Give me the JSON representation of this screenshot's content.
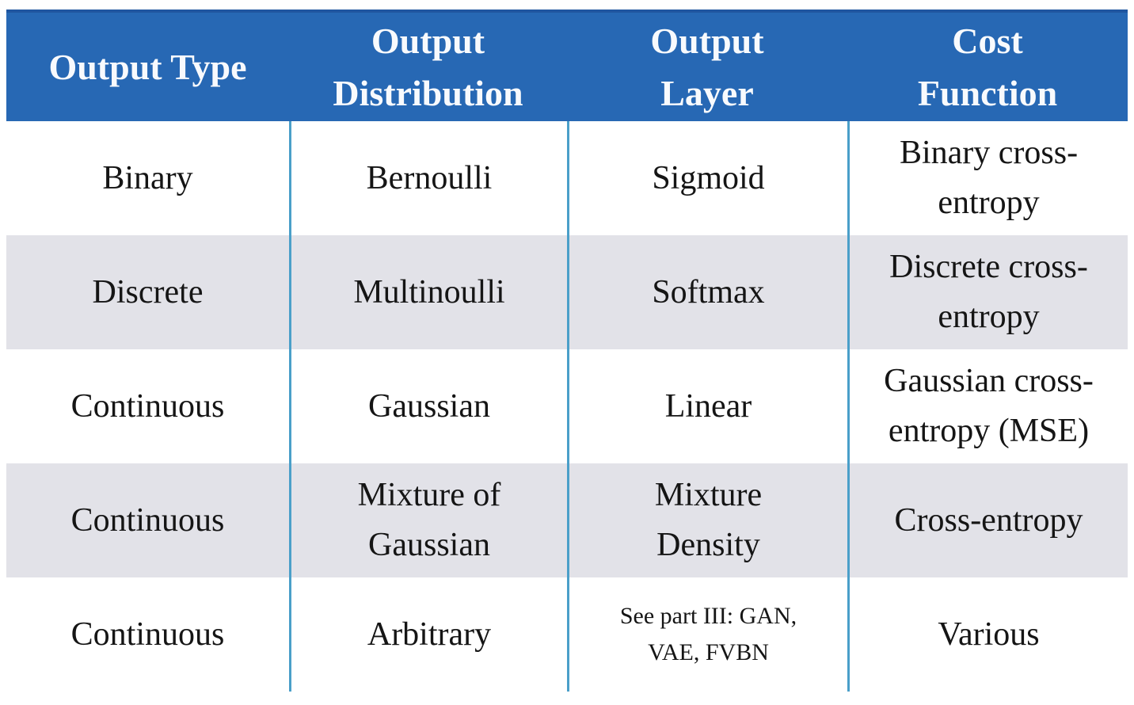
{
  "colors": {
    "page_background": "#ffffff",
    "header_background": "#2768b4",
    "header_top_border": "#2056a0",
    "header_text": "#f8fafd",
    "alt_row_background": "#e2e2e8",
    "column_divider": "#4a9fc9",
    "body_text": "#151515"
  },
  "chart_data": {
    "type": "table",
    "columns": [
      "Output Type",
      "Output Distribution",
      "Output Layer",
      "Cost Function"
    ],
    "rows": [
      [
        "Binary",
        "Bernoulli",
        "Sigmoid",
        "Binary cross-entropy"
      ],
      [
        "Discrete",
        "Multinoulli",
        "Softmax",
        "Discrete cross-entropy"
      ],
      [
        "Continuous",
        "Gaussian",
        "Linear",
        "Gaussian cross-entropy (MSE)"
      ],
      [
        "Continuous",
        "Mixture of Gaussian",
        "Mixture Density",
        "Cross-entropy"
      ],
      [
        "Continuous",
        "Arbitrary",
        "See part III: GAN, VAE, FVBN",
        "Various"
      ]
    ],
    "layout": {
      "header_style": "solid blue band, white bold serif text",
      "row_striping": "white / light gray alternating starting white",
      "dividers": "vertical light-blue rules between columns in body only",
      "grid": "no horizontal rules"
    }
  },
  "display": {
    "headers": [
      "Output Type",
      "Output\nDistribution",
      "Output\nLayer",
      "Cost\nFunction"
    ],
    "rows": [
      [
        "Binary",
        "Bernoulli",
        "Sigmoid",
        "Binary cross-\nentropy"
      ],
      [
        "Discrete",
        "Multinoulli",
        "Softmax",
        "Discrete cross-\nentropy"
      ],
      [
        "Continuous",
        "Gaussian",
        "Linear",
        "Gaussian cross-\nentropy (MSE)"
      ],
      [
        "Continuous",
        "Mixture of\nGaussian",
        "Mixture\nDensity",
        "Cross-entropy"
      ],
      [
        "Continuous",
        "Arbitrary",
        "See part III: GAN,\nVAE, FVBN",
        "Various"
      ]
    ]
  }
}
